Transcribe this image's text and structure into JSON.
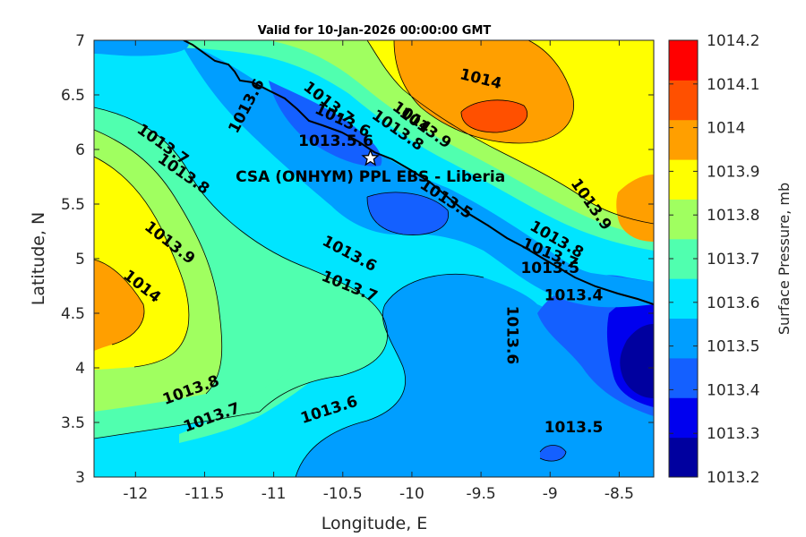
{
  "chart_data": {
    "type": "heatmap",
    "subtype": "filled-contour",
    "title": "Valid for 10-Jan-2026 00:00:00 GMT",
    "xlabel": "Longitude, E",
    "ylabel": "Latitude, N",
    "xlim": [
      -12.3,
      -8.25
    ],
    "ylim": [
      3,
      7
    ],
    "xticks": [
      -12,
      -11.5,
      -11,
      -10.5,
      -10,
      -9.5,
      -9,
      -8.5
    ],
    "yticks": [
      3,
      3.5,
      4,
      4.5,
      5,
      5.5,
      6,
      6.5,
      7
    ],
    "colorbar": {
      "label": "Surface Pressure, mb",
      "levels": [
        1013.2,
        1013.3,
        1013.4,
        1013.5,
        1013.6,
        1013.7,
        1013.8,
        1013.9,
        1014,
        1014.1,
        1014.2
      ],
      "tick_labels": [
        "1013.2",
        "1013.3",
        "1013.4",
        "1013.5",
        "1013.6",
        "1013.7",
        "1013.8",
        "1013.9",
        "1014",
        "1014.1",
        "1014.2"
      ],
      "colors": [
        "#00009f",
        "#0000ef",
        "#1460ff",
        "#009eff",
        "#00e5ff",
        "#50ffaf",
        "#a0ff60",
        "#ffff00",
        "#ff9f00",
        "#ff5000",
        "#ff0000"
      ]
    },
    "station": {
      "name": "CSA (ONHYM) PPL EBS  - Liberia",
      "lon": -10.3,
      "lat": 5.92
    },
    "contour_labels": [
      {
        "text": "1014",
        "lon": -9.5,
        "lat": 6.65,
        "angle": 14
      },
      {
        "text": "1013.9",
        "lon": -9.9,
        "lat": 6.2,
        "angle": 35
      },
      {
        "text": "1014",
        "lon": -10.0,
        "lat": 6.3,
        "angle": 35
      },
      {
        "text": "1013.8",
        "lon": -10.1,
        "lat": 6.18,
        "angle": 35
      },
      {
        "text": "1013.7",
        "lon": -10.6,
        "lat": 6.43,
        "angle": 38
      },
      {
        "text": "1013.6",
        "lon": -10.5,
        "lat": 6.27,
        "angle": 25
      },
      {
        "text": "1013.5.6",
        "lon": -10.55,
        "lat": 6.08,
        "angle": 0
      },
      {
        "text": "1013.6",
        "lon": -11.2,
        "lat": 6.4,
        "angle": -62
      },
      {
        "text": "1013.7",
        "lon": -11.8,
        "lat": 6.05,
        "angle": 35
      },
      {
        "text": "1013.8",
        "lon": -11.65,
        "lat": 5.78,
        "angle": 35
      },
      {
        "text": "1013.9",
        "lon": -11.75,
        "lat": 5.15,
        "angle": 38
      },
      {
        "text": "1014",
        "lon": -11.95,
        "lat": 4.75,
        "angle": 38
      },
      {
        "text": "1013.5",
        "lon": -9.75,
        "lat": 5.55,
        "angle": 33
      },
      {
        "text": "1013.6",
        "lon": -10.45,
        "lat": 5.05,
        "angle": 28
      },
      {
        "text": "1013.7",
        "lon": -10.45,
        "lat": 4.75,
        "angle": 22
      },
      {
        "text": "1013.6",
        "lon": -9.27,
        "lat": 4.3,
        "angle": 90
      },
      {
        "text": "1013.8",
        "lon": -11.6,
        "lat": 3.8,
        "angle": -20
      },
      {
        "text": "1013.7",
        "lon": -11.45,
        "lat": 3.55,
        "angle": -20
      },
      {
        "text": "1013.6",
        "lon": -10.6,
        "lat": 3.62,
        "angle": -18
      },
      {
        "text": "1013.5",
        "lon": -8.83,
        "lat": 3.46,
        "angle": 0
      },
      {
        "text": "1013.9",
        "lon": -8.7,
        "lat": 5.5,
        "angle": 55
      },
      {
        "text": "1013.8",
        "lon": -8.95,
        "lat": 5.18,
        "angle": 30
      },
      {
        "text": "1013.7",
        "lon": -9.0,
        "lat": 5.05,
        "angle": 22
      },
      {
        "text": "1013.5",
        "lon": -9.0,
        "lat": 4.92,
        "angle": 0
      },
      {
        "text": "1013.4",
        "lon": -8.83,
        "lat": 4.67,
        "angle": 0
      }
    ]
  }
}
